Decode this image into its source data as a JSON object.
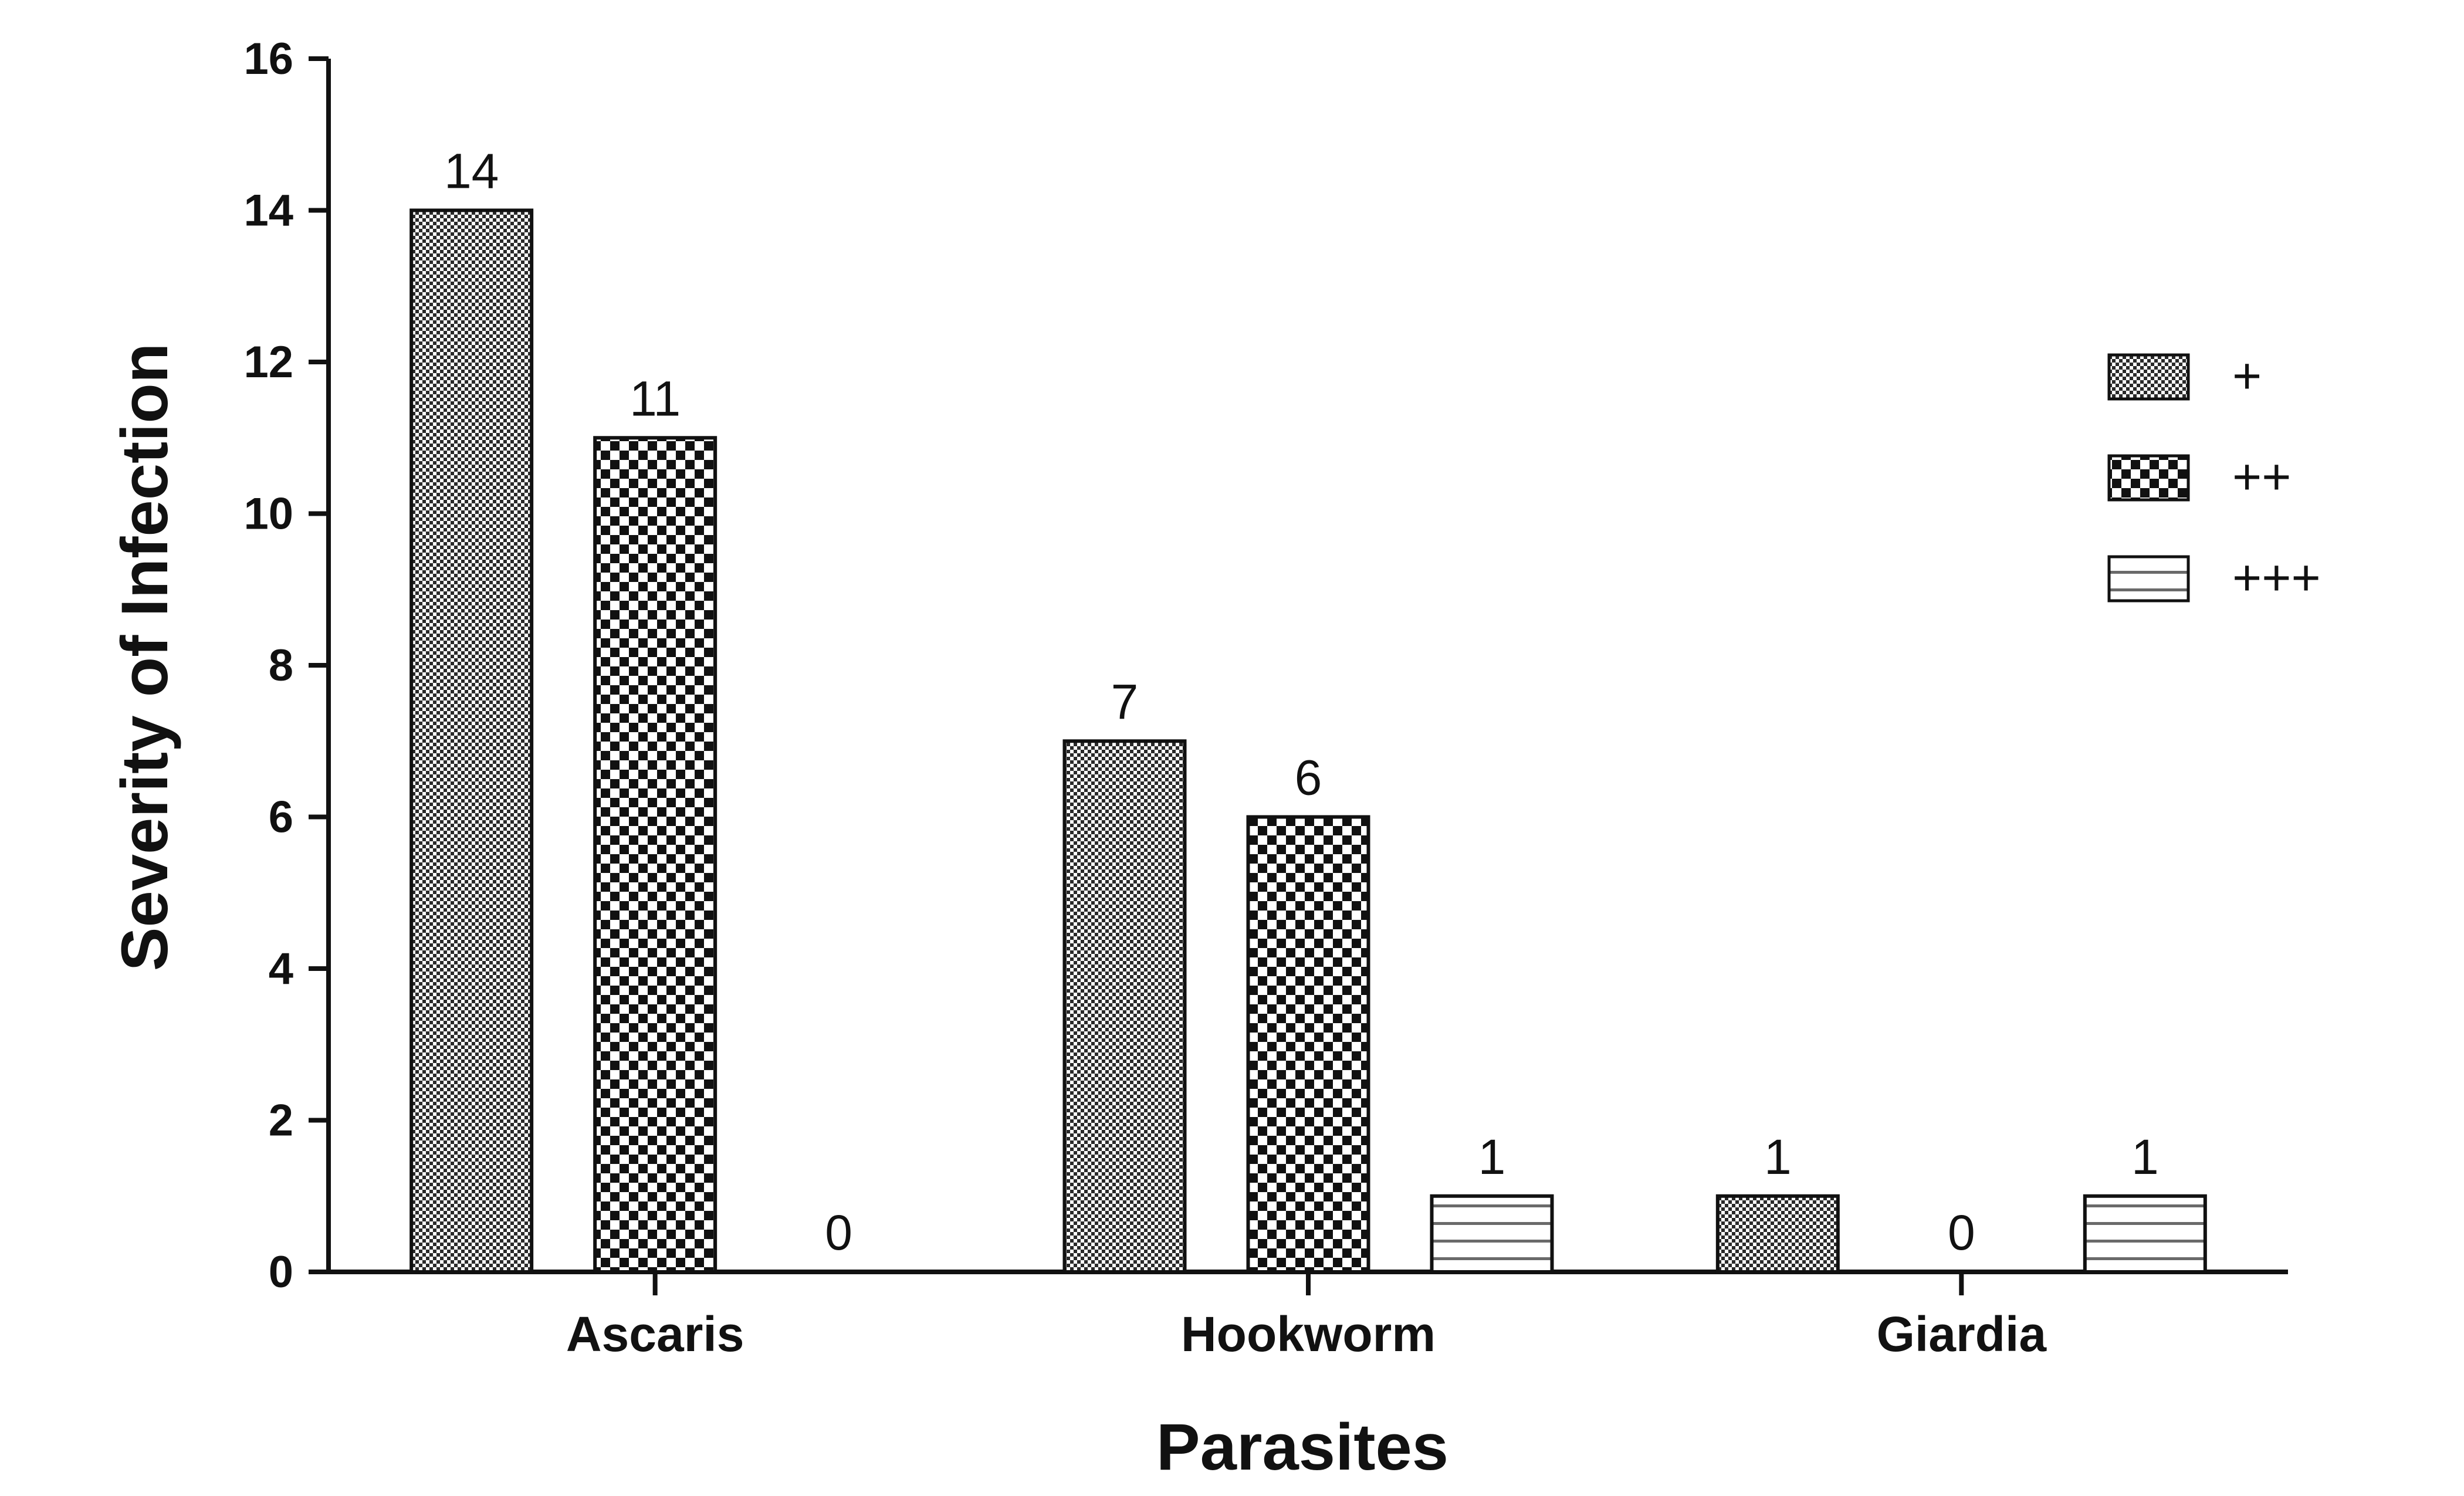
{
  "chart_data": {
    "type": "bar",
    "title": "",
    "xlabel": "Parasites",
    "ylabel": "Severity of Infection",
    "ylim": [
      0,
      16
    ],
    "yticks": [
      0,
      2,
      4,
      6,
      8,
      10,
      12,
      14,
      16
    ],
    "categories": [
      "Ascaris",
      "Hookworm",
      "Giardia"
    ],
    "series": [
      {
        "name": "+",
        "values": [
          14,
          7,
          1
        ],
        "pattern": "fine-check"
      },
      {
        "name": "++",
        "values": [
          11,
          6,
          0
        ],
        "pattern": "coarse-check"
      },
      {
        "name": "+++",
        "values": [
          0,
          1,
          1
        ],
        "pattern": "horizontal-lines"
      }
    ],
    "data_labels": [
      [
        "14",
        "7",
        "1"
      ],
      [
        "11",
        "6",
        "0"
      ],
      [
        "0",
        "1",
        "1"
      ]
    ],
    "grid": false,
    "legend_position": "right",
    "colors": {
      "ink": "#111111",
      "background": "#ffffff"
    }
  }
}
